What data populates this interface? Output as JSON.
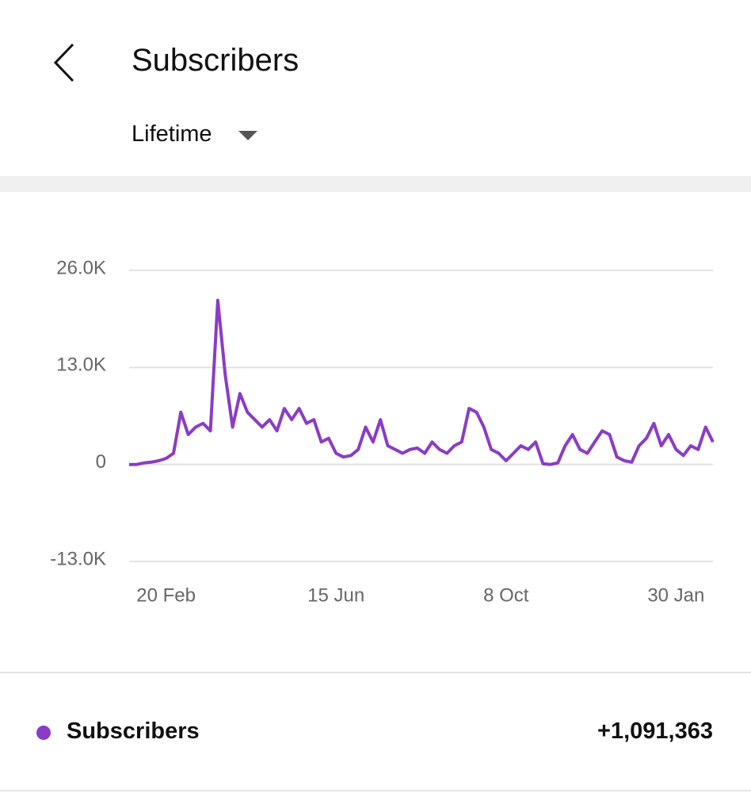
{
  "header": {
    "title": "Subscribers",
    "period": "Lifetime"
  },
  "chart_data": {
    "type": "line",
    "categories": [
      null,
      null,
      null,
      null,
      null,
      "20 Feb",
      null,
      null,
      null,
      null,
      null,
      null,
      null,
      null,
      null,
      null,
      null,
      null,
      null,
      null,
      null,
      null,
      null,
      null,
      null,
      null,
      null,
      null,
      "15 Jun",
      null,
      null,
      null,
      null,
      null,
      null,
      null,
      null,
      null,
      null,
      null,
      null,
      null,
      null,
      null,
      null,
      null,
      null,
      null,
      null,
      null,
      null,
      "8 Oct",
      null,
      null,
      null,
      null,
      null,
      null,
      null,
      null,
      null,
      null,
      null,
      null,
      null,
      null,
      null,
      null,
      null,
      null,
      null,
      null,
      null,
      null,
      "30 Jan",
      null,
      null,
      null,
      null,
      null
    ],
    "series": [
      {
        "name": "Subscribers",
        "color": "#8a3cc6",
        "values": [
          0,
          0,
          200,
          300,
          500,
          800,
          1500,
          7000,
          4000,
          5000,
          5500,
          4500,
          22000,
          12000,
          5000,
          9500,
          7000,
          6000,
          5000,
          6000,
          4500,
          7500,
          6000,
          7500,
          5500,
          6000,
          3000,
          3500,
          1500,
          1000,
          1200,
          2000,
          5000,
          3000,
          6000,
          2500,
          2000,
          1500,
          2000,
          2200,
          1500,
          3000,
          2000,
          1500,
          2500,
          3000,
          7500,
          7000,
          5000,
          2000,
          1500,
          500,
          1500,
          2500,
          2000,
          3000,
          100,
          0,
          200,
          2500,
          4000,
          2000,
          1500,
          3000,
          4500,
          4000,
          1000,
          500,
          300,
          2500,
          3500,
          5500,
          2500,
          4000,
          2000,
          1200,
          2500,
          2000,
          5000,
          3000
        ]
      }
    ],
    "ylim": [
      -13000,
      26000
    ],
    "yticks": [
      {
        "value": -13000,
        "label": "-13.0K"
      },
      0,
      {
        "value": 13000,
        "label": "13.0K"
      },
      {
        "value": 26000,
        "label": "26.0K"
      }
    ],
    "grid": true
  },
  "summary": {
    "name": "Subscribers",
    "total": "+1,091,363"
  }
}
